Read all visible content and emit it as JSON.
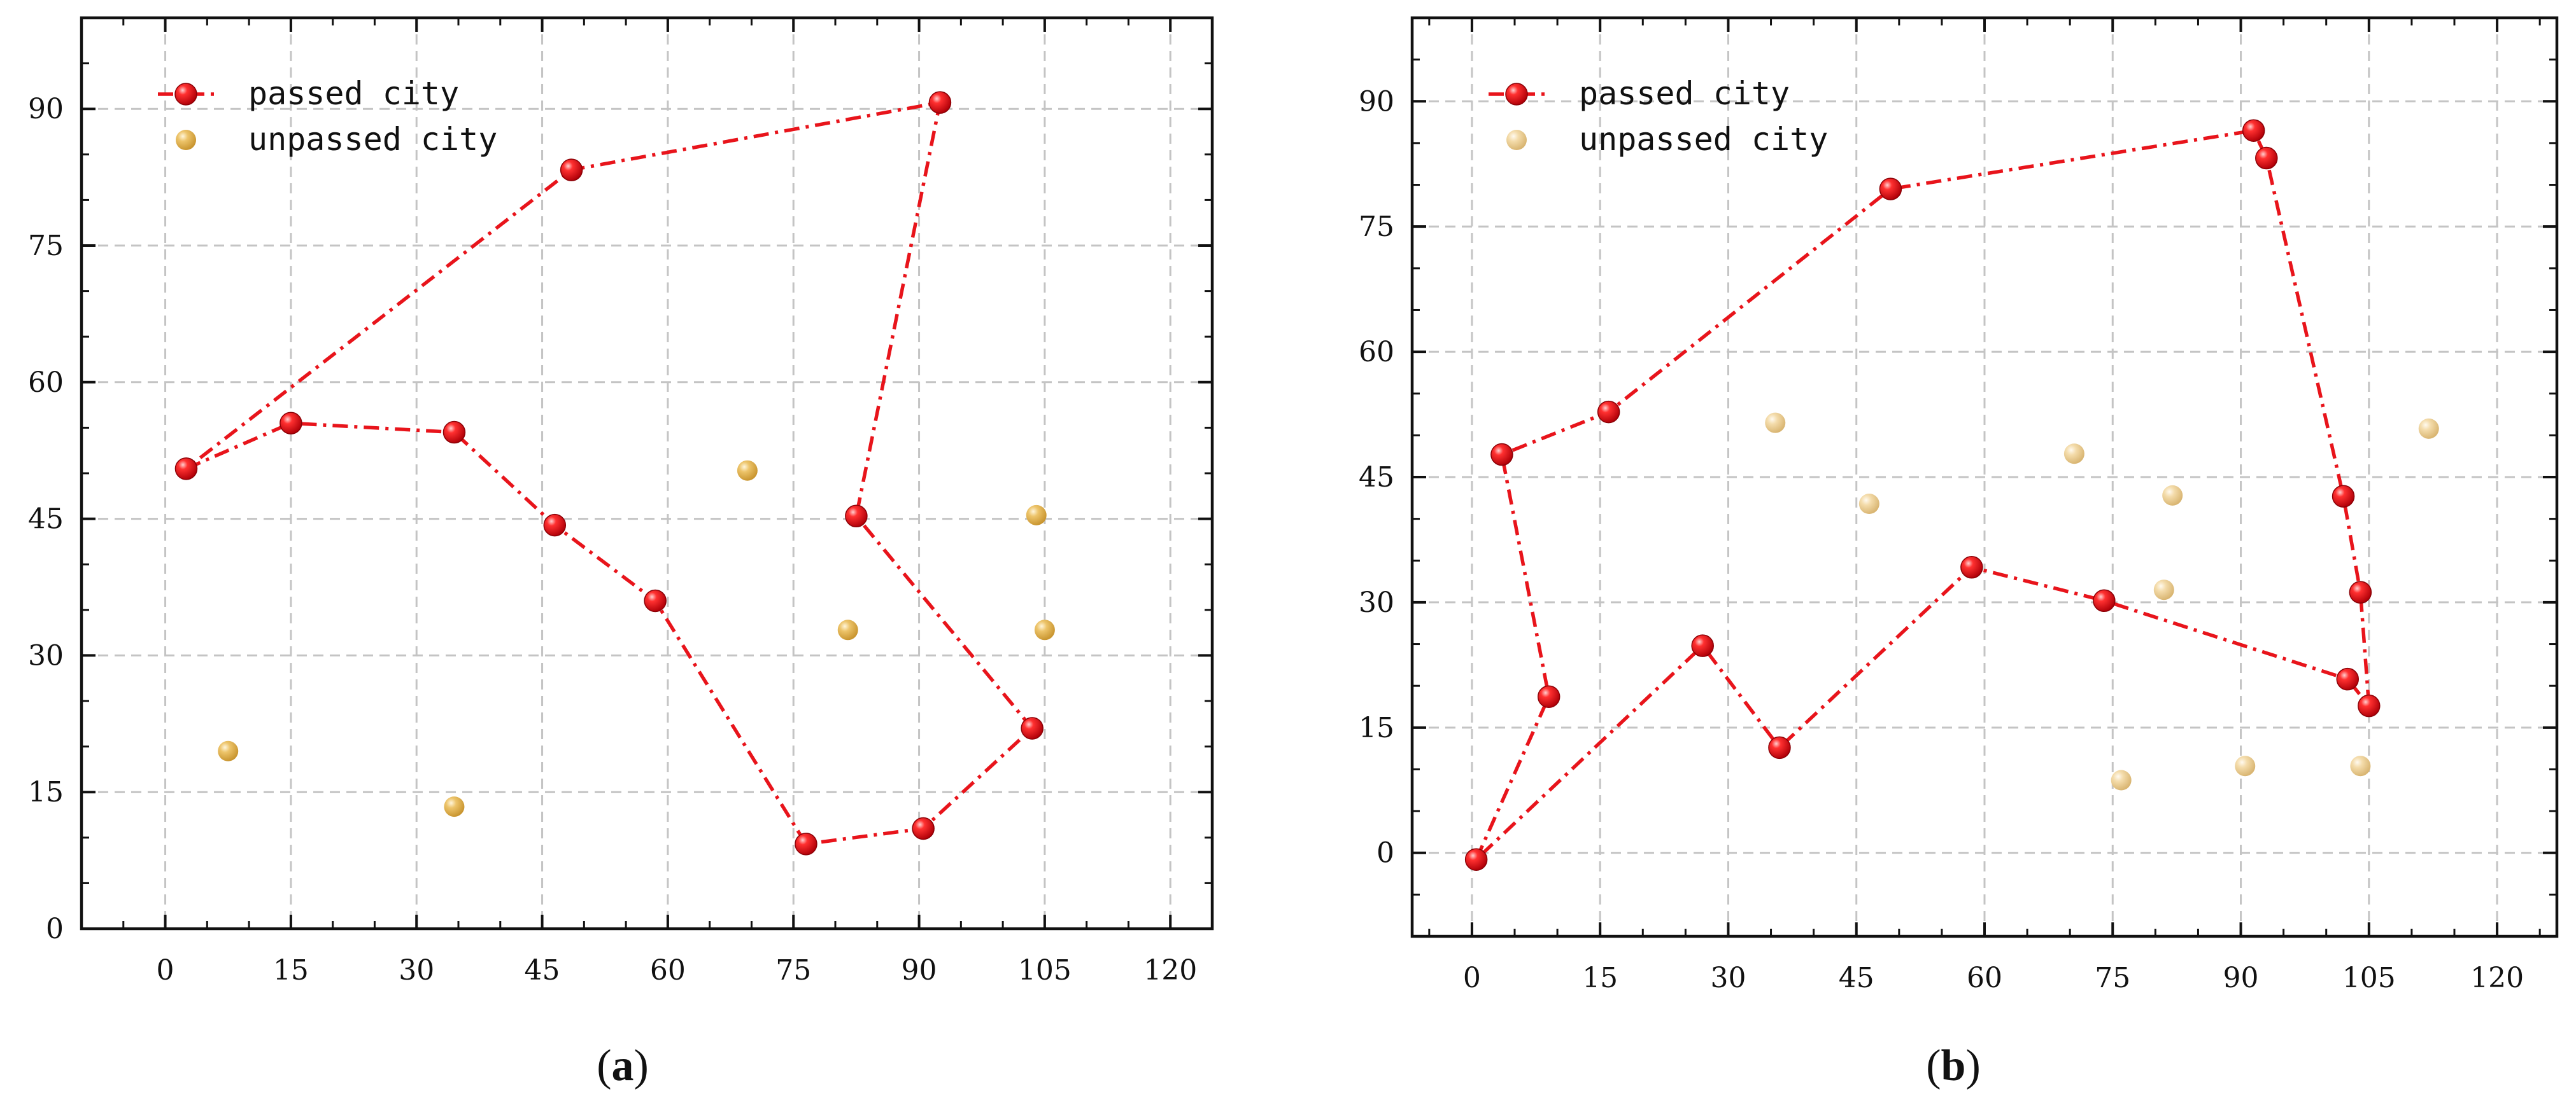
{
  "chart_data": [
    {
      "type": "scatter",
      "panel_label": "a",
      "xlim": [
        -10,
        125
      ],
      "ylim": [
        0,
        100
      ],
      "xticks": [
        0,
        15,
        30,
        45,
        60,
        75,
        90,
        105,
        120
      ],
      "yticks": [
        0,
        15,
        30,
        45,
        60,
        75,
        90
      ],
      "grid": true,
      "legend": {
        "position": "top-left",
        "entries": [
          "passed city",
          "unpassed city"
        ]
      },
      "series": [
        {
          "name": "passed city",
          "style": "dash-dot line with markers",
          "color": "#e8141b",
          "points": [
            [
              2.5,
              50.5
            ],
            [
              15,
              55.5
            ],
            [
              34.5,
              54.5
            ],
            [
              46.5,
              44.3
            ],
            [
              58.5,
              36
            ],
            [
              76.5,
              9.3
            ],
            [
              90.5,
              11
            ],
            [
              103.5,
              22
            ],
            [
              82.5,
              45.3
            ],
            [
              92.5,
              90.7
            ],
            [
              48.5,
              83.3
            ],
            [
              2.5,
              50.5
            ]
          ]
        },
        {
          "name": "unpassed city",
          "style": "markers",
          "color": "#e8b85a",
          "points": [
            [
              7.5,
              19.5
            ],
            [
              34.5,
              13.4
            ],
            [
              69.5,
              50.3
            ],
            [
              81.5,
              32.8
            ],
            [
              104,
              45.4
            ],
            [
              105,
              32.8
            ]
          ]
        }
      ]
    },
    {
      "type": "scatter",
      "panel_label": "b",
      "xlim": [
        -7,
        127
      ],
      "ylim": [
        -10,
        100
      ],
      "xticks": [
        0,
        15,
        30,
        45,
        60,
        75,
        90,
        105,
        120
      ],
      "yticks": [
        0,
        15,
        30,
        45,
        60,
        75,
        90
      ],
      "grid": true,
      "legend": {
        "position": "top-left",
        "entries": [
          "passed city",
          "unpassed city"
        ]
      },
      "series": [
        {
          "name": "passed city",
          "style": "dash-dot line with markers",
          "color": "#e8141b",
          "points": [
            [
              0.5,
              -0.8
            ],
            [
              9,
              18.7
            ],
            [
              3.5,
              47.7
            ],
            [
              16,
              52.8
            ],
            [
              49,
              79.5
            ],
            [
              91.5,
              86.5
            ],
            [
              93,
              83.2
            ],
            [
              102,
              42.7
            ],
            [
              104,
              31.2
            ],
            [
              105,
              17.6
            ],
            [
              102.5,
              20.8
            ],
            [
              74,
              30.2
            ],
            [
              58.5,
              34.2
            ],
            [
              36,
              12.6
            ],
            [
              27,
              24.8
            ],
            [
              0.5,
              -0.8
            ]
          ]
        },
        {
          "name": "unpassed city",
          "style": "markers",
          "color": "#f0d29a",
          "points": [
            [
              35.5,
              51.5
            ],
            [
              46.5,
              41.8
            ],
            [
              70.5,
              47.8
            ],
            [
              82,
              42.8
            ],
            [
              81,
              31.5
            ],
            [
              112,
              50.8
            ],
            [
              76,
              8.7
            ],
            [
              90.5,
              10.4
            ],
            [
              104,
              10.4
            ]
          ]
        }
      ]
    }
  ]
}
